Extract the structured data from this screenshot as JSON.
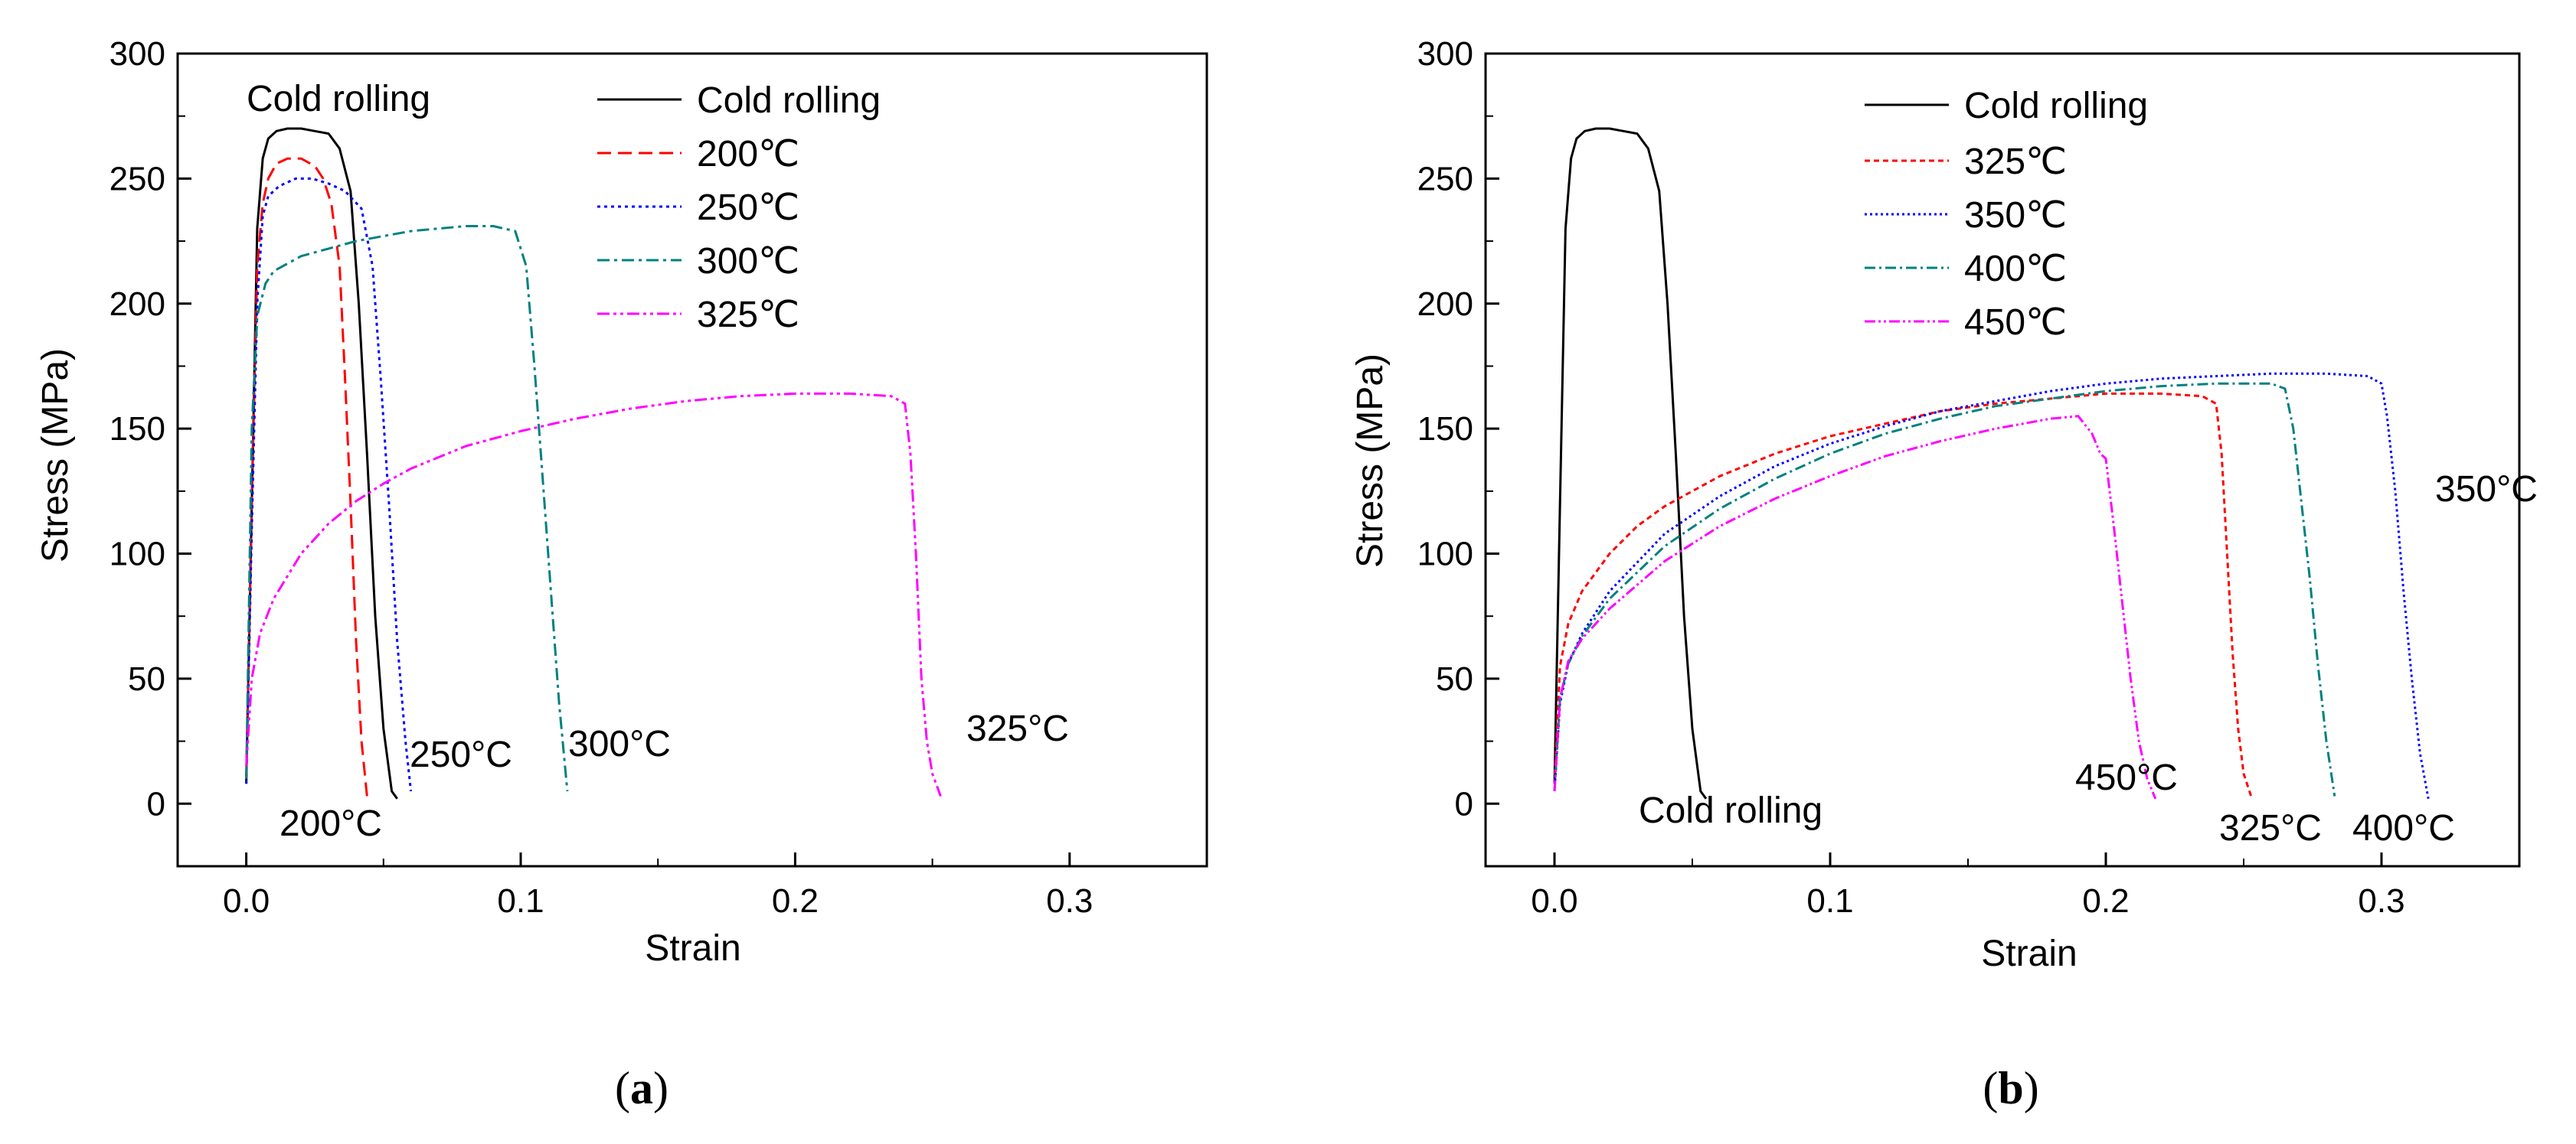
{
  "colors": {
    "cold_rolling": "#000000",
    "c200": "#ff0000",
    "c250": "#0000ff",
    "c300": "#008080",
    "c325": "#ff00ff"
  },
  "chart_data": [
    {
      "type": "line",
      "panel_label": "a",
      "xlabel": "Strain",
      "ylabel": "Stress (MPa)",
      "xlim": [
        -0.025,
        0.35
      ],
      "ylim": [
        -25,
        300
      ],
      "xticks": [
        0.0,
        0.1,
        0.2,
        0.3
      ],
      "xtick_labels": [
        "0.0",
        "0.1",
        "0.2",
        "0.3"
      ],
      "yticks": [
        0,
        50,
        100,
        150,
        200,
        250,
        300
      ],
      "ytick_labels": [
        "0",
        "50",
        "100",
        "150",
        "200",
        "250",
        "300"
      ],
      "legend_position": "top-center",
      "series": [
        {
          "name": "Cold rolling",
          "color": "#000000",
          "dash": "solid",
          "x": [
            0.0,
            0.002,
            0.004,
            0.006,
            0.008,
            0.011,
            0.015,
            0.02,
            0.025,
            0.03,
            0.034,
            0.038,
            0.041,
            0.044,
            0.047,
            0.05,
            0.053,
            0.055
          ],
          "y": [
            8,
            120,
            230,
            258,
            266,
            269,
            270,
            270,
            269,
            268,
            262,
            245,
            200,
            140,
            75,
            30,
            5,
            2
          ]
        },
        {
          "name": "200℃",
          "color": "#ff0000",
          "dash": "dashed",
          "x": [
            0.0,
            0.002,
            0.004,
            0.006,
            0.008,
            0.011,
            0.015,
            0.02,
            0.025,
            0.028,
            0.031,
            0.034,
            0.036,
            0.038,
            0.04,
            0.042,
            0.044
          ],
          "y": [
            10,
            120,
            215,
            240,
            250,
            256,
            258,
            258,
            255,
            250,
            240,
            215,
            170,
            120,
            65,
            25,
            3
          ]
        },
        {
          "name": "250℃",
          "color": "#0000ff",
          "dash": "dotted",
          "x": [
            0.0,
            0.002,
            0.004,
            0.006,
            0.008,
            0.012,
            0.018,
            0.024,
            0.03,
            0.036,
            0.042,
            0.046,
            0.049,
            0.052,
            0.055,
            0.058,
            0.06
          ],
          "y": [
            8,
            110,
            200,
            235,
            243,
            247,
            250,
            250,
            248,
            245,
            238,
            215,
            170,
            120,
            65,
            25,
            5
          ]
        },
        {
          "name": "300℃",
          "color": "#008080",
          "dash": "dashdot",
          "x": [
            0.0,
            0.002,
            0.004,
            0.007,
            0.01,
            0.02,
            0.03,
            0.04,
            0.05,
            0.06,
            0.07,
            0.08,
            0.09,
            0.098,
            0.102,
            0.105,
            0.108,
            0.111,
            0.114,
            0.117
          ],
          "y": [
            10,
            150,
            195,
            208,
            213,
            219,
            222,
            225,
            227,
            229,
            230,
            231,
            231,
            229,
            215,
            175,
            130,
            85,
            40,
            5
          ]
        },
        {
          "name": "325℃",
          "color": "#ff00ff",
          "dash": "dashdotdot",
          "x": [
            0.0,
            0.002,
            0.005,
            0.01,
            0.02,
            0.03,
            0.04,
            0.05,
            0.06,
            0.08,
            0.1,
            0.12,
            0.14,
            0.16,
            0.18,
            0.2,
            0.22,
            0.235,
            0.24,
            0.242,
            0.244,
            0.246,
            0.248,
            0.25,
            0.253
          ],
          "y": [
            15,
            50,
            68,
            82,
            100,
            112,
            121,
            128,
            134,
            143,
            149,
            154,
            158,
            161,
            163,
            164,
            164,
            163,
            160,
            140,
            100,
            50,
            25,
            12,
            3
          ]
        }
      ],
      "annotations": [
        "Cold rolling",
        "200°C",
        "250°C",
        "300°C",
        "325°C"
      ]
    },
    {
      "type": "line",
      "panel_label": "b",
      "xlabel": "Strain",
      "ylabel": "Stress (MPa)",
      "xlim": [
        -0.025,
        0.35
      ],
      "ylim": [
        -25,
        300
      ],
      "xticks": [
        0.0,
        0.1,
        0.2,
        0.3
      ],
      "xtick_labels": [
        "0.0",
        "0.1",
        "0.2",
        "0.3"
      ],
      "yticks": [
        0,
        50,
        100,
        150,
        200,
        250,
        300
      ],
      "ytick_labels": [
        "0",
        "50",
        "100",
        "150",
        "200",
        "250",
        "300"
      ],
      "legend_position": "top-center",
      "series": [
        {
          "name": "Cold rolling",
          "color": "#000000",
          "dash": "solid",
          "x": [
            0.0,
            0.002,
            0.004,
            0.006,
            0.008,
            0.011,
            0.015,
            0.02,
            0.025,
            0.03,
            0.034,
            0.038,
            0.041,
            0.044,
            0.047,
            0.05,
            0.053,
            0.055
          ],
          "y": [
            8,
            120,
            230,
            258,
            266,
            269,
            270,
            270,
            269,
            268,
            262,
            245,
            200,
            140,
            75,
            30,
            5,
            2
          ]
        },
        {
          "name": "325℃",
          "color": "#ff0000",
          "dash": "dashed",
          "x": [
            0.0,
            0.002,
            0.005,
            0.01,
            0.02,
            0.03,
            0.04,
            0.06,
            0.08,
            0.1,
            0.12,
            0.14,
            0.16,
            0.18,
            0.2,
            0.22,
            0.235,
            0.24,
            0.242,
            0.244,
            0.246,
            0.248,
            0.25,
            0.253
          ],
          "y": [
            8,
            55,
            72,
            85,
            100,
            111,
            119,
            131,
            140,
            147,
            152,
            157,
            160,
            162,
            164,
            164,
            163,
            160,
            140,
            100,
            60,
            30,
            12,
            2
          ]
        },
        {
          "name": "350℃",
          "color": "#0000ff",
          "dash": "dotted",
          "x": [
            0.0,
            0.002,
            0.005,
            0.01,
            0.02,
            0.04,
            0.06,
            0.08,
            0.1,
            0.12,
            0.14,
            0.16,
            0.18,
            0.2,
            0.22,
            0.24,
            0.26,
            0.28,
            0.295,
            0.3,
            0.302,
            0.305,
            0.308,
            0.311,
            0.314,
            0.317
          ],
          "y": [
            5,
            40,
            56,
            68,
            85,
            108,
            123,
            135,
            144,
            151,
            157,
            161,
            165,
            168,
            170,
            171,
            172,
            172,
            171,
            168,
            155,
            125,
            85,
            50,
            20,
            2
          ]
        },
        {
          "name": "400℃",
          "color": "#008080",
          "dash": "dashdot",
          "x": [
            0.0,
            0.002,
            0.005,
            0.01,
            0.02,
            0.04,
            0.06,
            0.08,
            0.1,
            0.12,
            0.14,
            0.16,
            0.18,
            0.2,
            0.22,
            0.24,
            0.26,
            0.265,
            0.268,
            0.271,
            0.274,
            0.277,
            0.28,
            0.283
          ],
          "y": [
            5,
            42,
            56,
            67,
            82,
            103,
            118,
            130,
            140,
            148,
            154,
            159,
            162,
            165,
            167,
            168,
            168,
            166,
            150,
            120,
            90,
            55,
            25,
            3
          ]
        },
        {
          "name": "450℃",
          "color": "#ff00ff",
          "dash": "dashdotdot",
          "x": [
            0.0,
            0.002,
            0.005,
            0.01,
            0.02,
            0.04,
            0.06,
            0.08,
            0.1,
            0.12,
            0.14,
            0.16,
            0.18,
            0.19,
            0.195,
            0.198,
            0.2,
            0.203,
            0.206,
            0.209,
            0.212,
            0.215,
            0.218
          ],
          "y": [
            5,
            42,
            57,
            66,
            78,
            97,
            111,
            122,
            131,
            139,
            145,
            150,
            154,
            155,
            148,
            140,
            138,
            110,
            80,
            50,
            25,
            10,
            2
          ]
        }
      ],
      "annotations": [
        "Cold rolling",
        "450°C",
        "325°C",
        "400°C",
        "350°C"
      ]
    }
  ]
}
